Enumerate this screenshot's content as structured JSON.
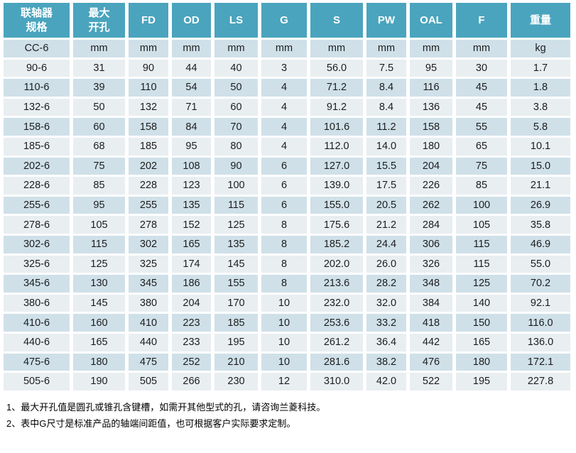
{
  "colors": {
    "header_bg": "#4AA4BE",
    "row_dark": "#CFE0E9",
    "row_light": "#E9EEF1",
    "cell_text": "#1D1D1D",
    "header_text": "#FFFFFF"
  },
  "table": {
    "headers": [
      "联轴器\n规格",
      "最大\n开孔",
      "FD",
      "OD",
      "LS",
      "G",
      "S",
      "PW",
      "OAL",
      "F",
      "重量"
    ],
    "unit_row": [
      "CC-6",
      "mm",
      "mm",
      "mm",
      "mm",
      "mm",
      "mm",
      "mm",
      "mm",
      "mm",
      "kg"
    ],
    "rows": [
      [
        "90-6",
        "31",
        "90",
        "44",
        "40",
        "3",
        "56.0",
        "7.5",
        "95",
        "30",
        "1.7"
      ],
      [
        "110-6",
        "39",
        "110",
        "54",
        "50",
        "4",
        "71.2",
        "8.4",
        "116",
        "45",
        "1.8"
      ],
      [
        "132-6",
        "50",
        "132",
        "71",
        "60",
        "4",
        "91.2",
        "8.4",
        "136",
        "45",
        "3.8"
      ],
      [
        "158-6",
        "60",
        "158",
        "84",
        "70",
        "4",
        "101.6",
        "11.2",
        "158",
        "55",
        "5.8"
      ],
      [
        "185-6",
        "68",
        "185",
        "95",
        "80",
        "4",
        "112.0",
        "14.0",
        "180",
        "65",
        "10.1"
      ],
      [
        "202-6",
        "75",
        "202",
        "108",
        "90",
        "6",
        "127.0",
        "15.5",
        "204",
        "75",
        "15.0"
      ],
      [
        "228-6",
        "85",
        "228",
        "123",
        "100",
        "6",
        "139.0",
        "17.5",
        "226",
        "85",
        "21.1"
      ],
      [
        "255-6",
        "95",
        "255",
        "135",
        "115",
        "6",
        "155.0",
        "20.5",
        "262",
        "100",
        "26.9"
      ],
      [
        "278-6",
        "105",
        "278",
        "152",
        "125",
        "8",
        "175.6",
        "21.2",
        "284",
        "105",
        "35.8"
      ],
      [
        "302-6",
        "115",
        "302",
        "165",
        "135",
        "8",
        "185.2",
        "24.4",
        "306",
        "115",
        "46.9"
      ],
      [
        "325-6",
        "125",
        "325",
        "174",
        "145",
        "8",
        "202.0",
        "26.0",
        "326",
        "115",
        "55.0"
      ],
      [
        "345-6",
        "130",
        "345",
        "186",
        "155",
        "8",
        "213.6",
        "28.2",
        "348",
        "125",
        "70.2"
      ],
      [
        "380-6",
        "145",
        "380",
        "204",
        "170",
        "10",
        "232.0",
        "32.0",
        "384",
        "140",
        "92.1"
      ],
      [
        "410-6",
        "160",
        "410",
        "223",
        "185",
        "10",
        "253.6",
        "33.2",
        "418",
        "150",
        "116.0"
      ],
      [
        "440-6",
        "165",
        "440",
        "233",
        "195",
        "10",
        "261.2",
        "36.4",
        "442",
        "165",
        "136.0"
      ],
      [
        "475-6",
        "180",
        "475",
        "252",
        "210",
        "10",
        "281.6",
        "38.2",
        "476",
        "180",
        "172.1"
      ],
      [
        "505-6",
        "190",
        "505",
        "266",
        "230",
        "12",
        "310.0",
        "42.0",
        "522",
        "195",
        "227.8"
      ]
    ]
  },
  "footnotes": [
    "1、最大开孔值是圆孔或锥孔含键槽，如需开其他型式的孔，请咨询兰菱科技。",
    "2、表中G尺寸是标准产品的轴端间距值，也可根据客户实际要求定制。"
  ]
}
